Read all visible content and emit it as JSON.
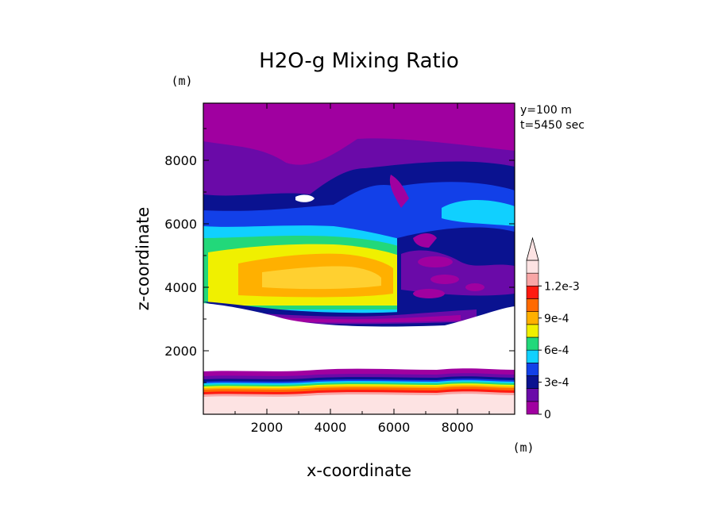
{
  "chart_data": {
    "type": "heatmap",
    "title": "H2O-g Mixing Ratio",
    "xlabel": "x-coordinate",
    "ylabel": "z-coordinate",
    "x_unit": "(m)",
    "y_unit": "(m)",
    "annotations": [
      "y=100 m",
      "t=5450 sec"
    ],
    "xlim": [
      0,
      9800
    ],
    "ylim": [
      0,
      9800
    ],
    "x_ticks": [
      2000,
      4000,
      6000,
      8000
    ],
    "y_ticks": [
      2000,
      4000,
      6000,
      8000
    ],
    "x_tick_labels": [
      "2000",
      "4000",
      "6000",
      "8000"
    ],
    "y_tick_labels": [
      "2000",
      "4000",
      "6000",
      "8000"
    ],
    "colorbar": {
      "levels": [
        0,
        0.00015,
        0.0003,
        0.00045,
        0.0006,
        0.00075,
        0.0009,
        0.00105,
        0.0012
      ],
      "labels": [
        "0",
        "3e-4",
        "6e-4",
        "9e-4",
        "1.2e-3"
      ],
      "label_values": [
        0,
        0.0003,
        0.0006,
        0.0009,
        0.0012
      ],
      "colors": [
        "#a000a0",
        "#6a0aa8",
        "#0a1290",
        "#1240e8",
        "#10d0ff",
        "#22d87a",
        "#f0f000",
        "#ffb000",
        "#ff6a00",
        "#ff1a10",
        "#f8a6a6",
        "#fde3e3"
      ],
      "extend": "max"
    }
  }
}
